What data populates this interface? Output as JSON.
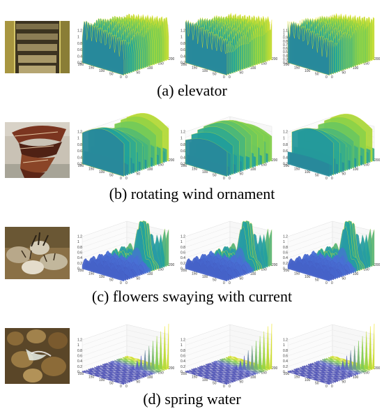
{
  "rows": [
    {
      "caption": "(a) elevator",
      "thumbnail": "elevator-photo",
      "surface_style": "dense-ridges",
      "colors": [
        "#3b3c9c",
        "#21a39b",
        "#7fcf4f",
        "#f1e51d"
      ],
      "z_ticks": [
        [
          "1.2",
          "1",
          "0.8",
          "0.6",
          "0.4",
          "0.2"
        ],
        [
          "1.2",
          "1",
          "0.8",
          "0.6",
          "0.4",
          "0.2"
        ],
        [
          "1.1",
          "1",
          "0.9",
          "0.8",
          "0.7",
          "0.6",
          "0.5",
          "0.4",
          "0.3",
          "0.25"
        ]
      ],
      "x_ticks": [
        "200",
        "150",
        "100",
        "50",
        "0"
      ],
      "y_ticks": [
        "0",
        "50",
        "100",
        "150",
        "200"
      ]
    },
    {
      "caption": "(b) rotating wind ornament",
      "thumbnail": "wind-ornament-photo",
      "surface_style": "spiky-ridges",
      "colors": [
        "#3b3c9c",
        "#21a39b",
        "#7fcf4f",
        "#f1e51d"
      ],
      "z_ticks": [
        [
          "1.2",
          "1",
          "0.8",
          "0.6",
          "0.4",
          "0.2"
        ],
        [
          "1.2",
          "1",
          "0.8",
          "0.6",
          "0.4",
          "0.2"
        ],
        [
          "1.2",
          "1",
          "0.8",
          "0.6",
          "0.4",
          "0.2"
        ]
      ],
      "x_ticks": [
        "200",
        "150",
        "100",
        "50",
        "0"
      ],
      "y_ticks": [
        "0",
        "50",
        "100",
        "150",
        "200"
      ]
    },
    {
      "caption": "(c) flowers swaying with current",
      "thumbnail": "flowers-photo",
      "surface_style": "wavy-peak",
      "colors": [
        "#3b3c9c",
        "#4a6fd6",
        "#21a39b",
        "#f1e51d"
      ],
      "z_ticks": [
        [
          "1.2",
          "1",
          "0.8",
          "0.6",
          "0.4",
          "0.2",
          "0"
        ],
        [
          "1.2",
          "1",
          "0.8",
          "0.6",
          "0.4",
          "0.2",
          "0"
        ],
        [
          "1.2",
          "1",
          "0.8",
          "0.6",
          "0.4",
          "0.2",
          "0"
        ]
      ],
      "x_ticks": [
        "200",
        "150",
        "100",
        "50",
        "0"
      ],
      "y_ticks": [
        "0",
        "50",
        "100",
        "150",
        "200"
      ]
    },
    {
      "caption": "(d) spring water",
      "thumbnail": "spring-water-photo",
      "surface_style": "flat-spike",
      "colors": [
        "#3b3c9c",
        "#5b62c9",
        "#7fcf4f",
        "#f1e51d"
      ],
      "z_ticks": [
        [
          "1.2",
          "1",
          "0.8",
          "0.6",
          "0.4",
          "0.2",
          "0"
        ],
        [
          "1.2",
          "1",
          "0.8",
          "0.6",
          "0.4",
          "0.2",
          "0"
        ],
        [
          "1.2",
          "1",
          "0.8",
          "0.6",
          "0.4",
          "0.2",
          "0"
        ]
      ],
      "x_ticks": [
        "200",
        "150",
        "100",
        "50",
        "0"
      ],
      "y_ticks": [
        "0",
        "50",
        "100",
        "150",
        "200"
      ]
    }
  ]
}
